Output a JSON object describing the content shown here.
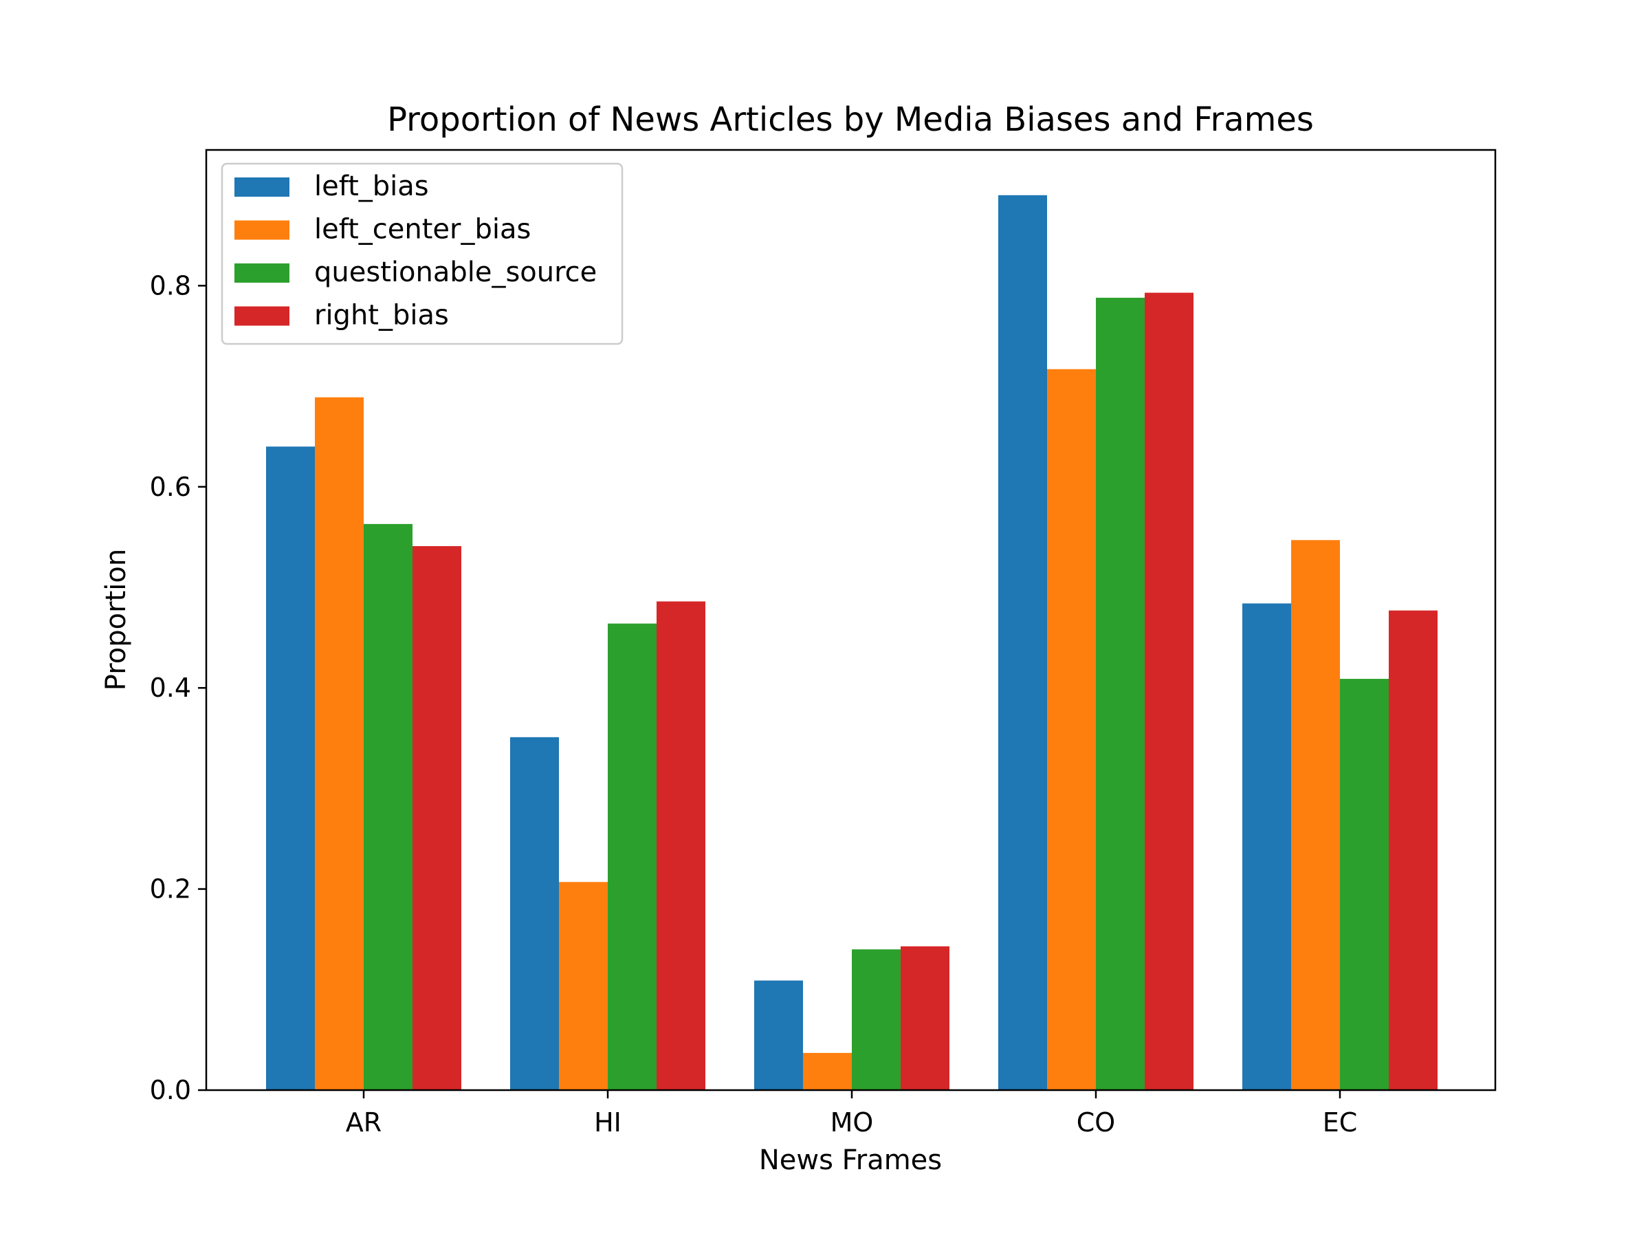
{
  "chart_data": {
    "type": "bar",
    "title": "Proportion of News Articles by Media Biases and Frames",
    "xlabel": "News Frames",
    "ylabel": "Proportion",
    "categories": [
      "AR",
      "HI",
      "MO",
      "CO",
      "EC"
    ],
    "ylim": [
      0,
      0.935
    ],
    "yticks": [
      0.0,
      0.2,
      0.4,
      0.6,
      0.8
    ],
    "ytick_labels": [
      "0.0",
      "0.2",
      "0.4",
      "0.6",
      "0.8"
    ],
    "grid": false,
    "legend_position": "top-left",
    "series": [
      {
        "name": "left_bias",
        "color": "#1f77b4",
        "values": [
          0.64,
          0.351,
          0.109,
          0.89,
          0.484
        ]
      },
      {
        "name": "left_center_bias",
        "color": "#ff7f0e",
        "values": [
          0.689,
          0.207,
          0.037,
          0.717,
          0.547
        ]
      },
      {
        "name": "questionable_source",
        "color": "#2ca02c",
        "values": [
          0.563,
          0.464,
          0.14,
          0.788,
          0.409
        ]
      },
      {
        "name": "right_bias",
        "color": "#d62728",
        "values": [
          0.541,
          0.486,
          0.143,
          0.793,
          0.477
        ]
      }
    ]
  }
}
